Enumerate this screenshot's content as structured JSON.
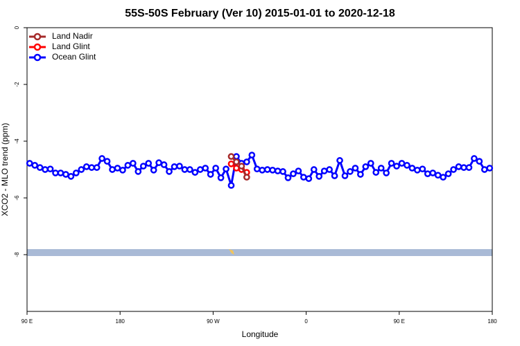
{
  "chart_data": {
    "type": "line",
    "title": "55S-50S February (Ver 10)   2015-01-01 to 2020-12-18",
    "x_label": "Longitude",
    "y_label": "XCO2 - MLO trend (ppm)",
    "xlim": [
      90,
      540
    ],
    "ylim": [
      -10,
      0
    ],
    "xticks": [
      {
        "value": 90,
        "label": "90 E"
      },
      {
        "value": 180,
        "label": "180"
      },
      {
        "value": 270,
        "label": "90 W"
      },
      {
        "value": 360,
        "label": "0"
      },
      {
        "value": 450,
        "label": "90 E"
      },
      {
        "value": 540,
        "label": "180"
      }
    ],
    "yticks": [
      0,
      -2,
      -4,
      -6,
      -8
    ],
    "legend": "top-left",
    "series": [
      {
        "name": "Land Nadir",
        "color": "#a52a2a",
        "x": [
          287.5,
          292.5,
          297.5,
          302.5
        ],
        "values": [
          -4.54,
          -4.73,
          -4.88,
          -5.27
        ]
      },
      {
        "name": "Land Glint",
        "color": "#ff0000",
        "x": [
          287.5,
          292.5,
          297.5,
          302.5
        ],
        "values": [
          -4.8,
          -4.95,
          -5.0,
          -5.1
        ]
      },
      {
        "name": "Ocean Glint",
        "color": "#0000ff",
        "x": [
          92.5,
          97.5,
          102.5,
          107.5,
          112.5,
          117.5,
          122.5,
          127.5,
          132.5,
          137.5,
          142.5,
          147.5,
          152.5,
          157.5,
          162.5,
          167.5,
          172.5,
          177.5,
          182.5,
          187.5,
          192.5,
          197.5,
          202.5,
          207.5,
          212.5,
          217.5,
          222.5,
          227.5,
          232.5,
          237.5,
          242.5,
          247.5,
          252.5,
          257.5,
          262.5,
          267.5,
          272.5,
          277.5,
          282.5,
          287.5,
          292.5,
          297.5,
          302.5,
          307.5,
          312.5,
          317.5,
          322.5,
          327.5,
          332.5,
          337.5,
          342.5,
          347.5,
          352.5,
          357.5,
          362.5,
          367.5,
          372.5,
          377.5,
          382.5,
          387.5,
          392.5,
          397.5,
          402.5,
          407.5,
          412.5,
          417.5,
          422.5,
          427.5,
          432.5,
          437.5,
          442.5,
          447.5,
          452.5,
          457.5,
          462.5,
          467.5,
          472.5,
          477.5,
          482.5,
          487.5,
          492.5,
          497.5,
          502.5,
          507.5,
          512.5,
          517.5,
          522.5,
          527.5,
          532.5,
          537.5
        ],
        "values": [
          -4.78,
          -4.85,
          -4.93,
          -5.0,
          -4.98,
          -5.12,
          -5.12,
          -5.17,
          -5.24,
          -5.12,
          -5.0,
          -4.9,
          -4.93,
          -4.93,
          -4.61,
          -4.71,
          -5.0,
          -4.95,
          -5.02,
          -4.85,
          -4.78,
          -5.07,
          -4.88,
          -4.78,
          -5.02,
          -4.76,
          -4.83,
          -5.07,
          -4.9,
          -4.88,
          -5.0,
          -5.0,
          -5.1,
          -5.0,
          -4.95,
          -5.17,
          -4.95,
          -5.29,
          -4.98,
          -5.56,
          -4.54,
          -4.78,
          -4.73,
          -4.49,
          -4.98,
          -5.02,
          -5.0,
          -5.02,
          -5.05,
          -5.07,
          -5.29,
          -5.15,
          -5.05,
          -5.27,
          -5.32,
          -5.0,
          -5.24,
          -5.05,
          -5.0,
          -5.22,
          -4.68,
          -5.22,
          -5.07,
          -4.95,
          -5.17,
          -4.9,
          -4.78,
          -5.1,
          -4.95,
          -5.12,
          -4.78,
          -4.88,
          -4.78,
          -4.85,
          -4.95,
          -5.02,
          -4.98,
          -5.15,
          -5.12,
          -5.2,
          -5.27,
          -5.15,
          -5.0,
          -4.9,
          -4.93,
          -4.93,
          -4.61,
          -4.71,
          -5.0,
          -4.95
        ]
      }
    ]
  }
}
